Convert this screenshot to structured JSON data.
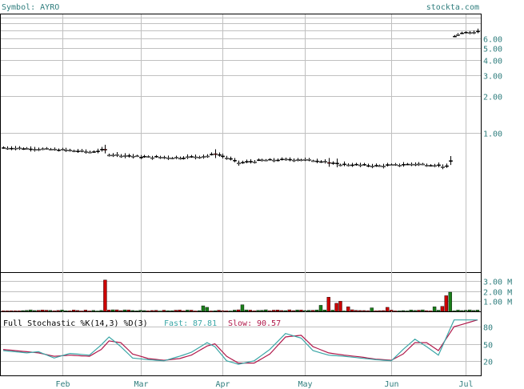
{
  "header": {
    "symbol_label": "Symbol: AYRO",
    "site_label": "stockta.com"
  },
  "colors": {
    "text_accent": "#2e7d7d",
    "frame": "#000000",
    "grid": "#c0c0c0",
    "up_volume": "#1a7f1a",
    "down_volume": "#cc0000",
    "fast_line": "#3aa6a6",
    "slow_line": "#b0184a"
  },
  "chart_data": [
    {
      "type": "candlestick",
      "name": "price",
      "scale": "log",
      "ylim": [
        0.07,
        9.5
      ],
      "y_tick_labels": [
        "6.00",
        "5.00",
        "4.00",
        "3.00",
        "2.00",
        "1.00"
      ],
      "y_tick_values": [
        6,
        5,
        4,
        3,
        2,
        1
      ],
      "y_extra_gridlines": [
        9,
        8,
        7,
        6
      ],
      "x_tick_labels": [
        "Feb",
        "Mar",
        "Apr",
        "May",
        "Jun",
        "Jul"
      ],
      "x_day_index_of_ticks": [
        15,
        35,
        56,
        77,
        99,
        118
      ],
      "n_days": 122,
      "anchors": [
        [
          0,
          0.75
        ],
        [
          15,
          0.72
        ],
        [
          22,
          0.69
        ],
        [
          26,
          0.72
        ],
        [
          27,
          0.66
        ],
        [
          35,
          0.63
        ],
        [
          45,
          0.62
        ],
        [
          52,
          0.64
        ],
        [
          54,
          0.67
        ],
        [
          58,
          0.6
        ],
        [
          60,
          0.56
        ],
        [
          66,
          0.59
        ],
        [
          75,
          0.6
        ],
        [
          82,
          0.58
        ],
        [
          84,
          0.55
        ],
        [
          96,
          0.53
        ],
        [
          105,
          0.55
        ],
        [
          110,
          0.54
        ],
        [
          113,
          0.52
        ],
        [
          114,
          0.58
        ],
        [
          115,
          6.3
        ],
        [
          118,
          6.7
        ],
        [
          121,
          6.9
        ]
      ]
    },
    {
      "type": "bar",
      "name": "volume",
      "y_tick_labels": [
        "3.00 M",
        "2.00 M",
        "1.00 M"
      ],
      "y_tick_values": [
        3,
        2,
        1
      ],
      "ylim": [
        0,
        3.8
      ],
      "unit": "M",
      "spikes": [
        {
          "day": 26,
          "value": 3.1,
          "up": false
        },
        {
          "day": 51,
          "value": 0.55,
          "up": true
        },
        {
          "day": 52,
          "value": 0.4,
          "up": true
        },
        {
          "day": 61,
          "value": 0.65,
          "up": true
        },
        {
          "day": 81,
          "value": 0.6,
          "up": true
        },
        {
          "day": 83,
          "value": 1.4,
          "up": false
        },
        {
          "day": 85,
          "value": 0.8,
          "up": false
        },
        {
          "day": 86,
          "value": 1.0,
          "up": false
        },
        {
          "day": 88,
          "value": 0.45,
          "up": false
        },
        {
          "day": 94,
          "value": 0.35,
          "up": true
        },
        {
          "day": 98,
          "value": 0.4,
          "up": false
        },
        {
          "day": 110,
          "value": 0.45,
          "up": true
        },
        {
          "day": 112,
          "value": 0.5,
          "up": false
        },
        {
          "day": 113,
          "value": 1.55,
          "up": false
        },
        {
          "day": 114,
          "value": 1.9,
          "up": true
        }
      ]
    },
    {
      "type": "line",
      "name": "stochastic",
      "title": "Full Stochastic %K(14,3) %D(3)",
      "fast_label": "Fast:",
      "fast_value": "87.81",
      "slow_label": "Slow:",
      "slow_value": "90.57",
      "y_tick_labels": [
        "80",
        "50",
        "20"
      ],
      "y_tick_values": [
        80,
        50,
        20
      ],
      "ylim": [
        0,
        100
      ],
      "fast_anchors": [
        [
          0,
          38
        ],
        [
          6,
          34
        ],
        [
          9,
          36
        ],
        [
          13,
          25
        ],
        [
          17,
          33
        ],
        [
          22,
          30
        ],
        [
          25,
          48
        ],
        [
          27,
          62
        ],
        [
          30,
          45
        ],
        [
          33,
          25
        ],
        [
          37,
          22
        ],
        [
          41,
          20
        ],
        [
          45,
          28
        ],
        [
          48,
          35
        ],
        [
          52,
          52
        ],
        [
          54,
          45
        ],
        [
          57,
          20
        ],
        [
          60,
          14
        ],
        [
          64,
          20
        ],
        [
          68,
          40
        ],
        [
          72,
          68
        ],
        [
          76,
          60
        ],
        [
          79,
          38
        ],
        [
          83,
          30
        ],
        [
          87,
          28
        ],
        [
          91,
          25
        ],
        [
          95,
          22
        ],
        [
          99,
          20
        ],
        [
          102,
          40
        ],
        [
          105,
          58
        ],
        [
          108,
          45
        ],
        [
          111,
          30
        ],
        [
          115,
          92
        ],
        [
          121,
          92
        ]
      ],
      "slow_anchors": [
        [
          0,
          40
        ],
        [
          6,
          36
        ],
        [
          9,
          34
        ],
        [
          13,
          28
        ],
        [
          17,
          30
        ],
        [
          22,
          28
        ],
        [
          25,
          40
        ],
        [
          27,
          55
        ],
        [
          30,
          52
        ],
        [
          33,
          32
        ],
        [
          37,
          24
        ],
        [
          41,
          21
        ],
        [
          45,
          24
        ],
        [
          48,
          30
        ],
        [
          52,
          46
        ],
        [
          54,
          50
        ],
        [
          57,
          28
        ],
        [
          60,
          16
        ],
        [
          64,
          16
        ],
        [
          68,
          32
        ],
        [
          72,
          62
        ],
        [
          76,
          65
        ],
        [
          79,
          45
        ],
        [
          83,
          34
        ],
        [
          87,
          30
        ],
        [
          91,
          27
        ],
        [
          95,
          23
        ],
        [
          99,
          21
        ],
        [
          102,
          32
        ],
        [
          105,
          52
        ],
        [
          108,
          52
        ],
        [
          111,
          38
        ],
        [
          115,
          80
        ],
        [
          121,
          92
        ]
      ]
    }
  ]
}
